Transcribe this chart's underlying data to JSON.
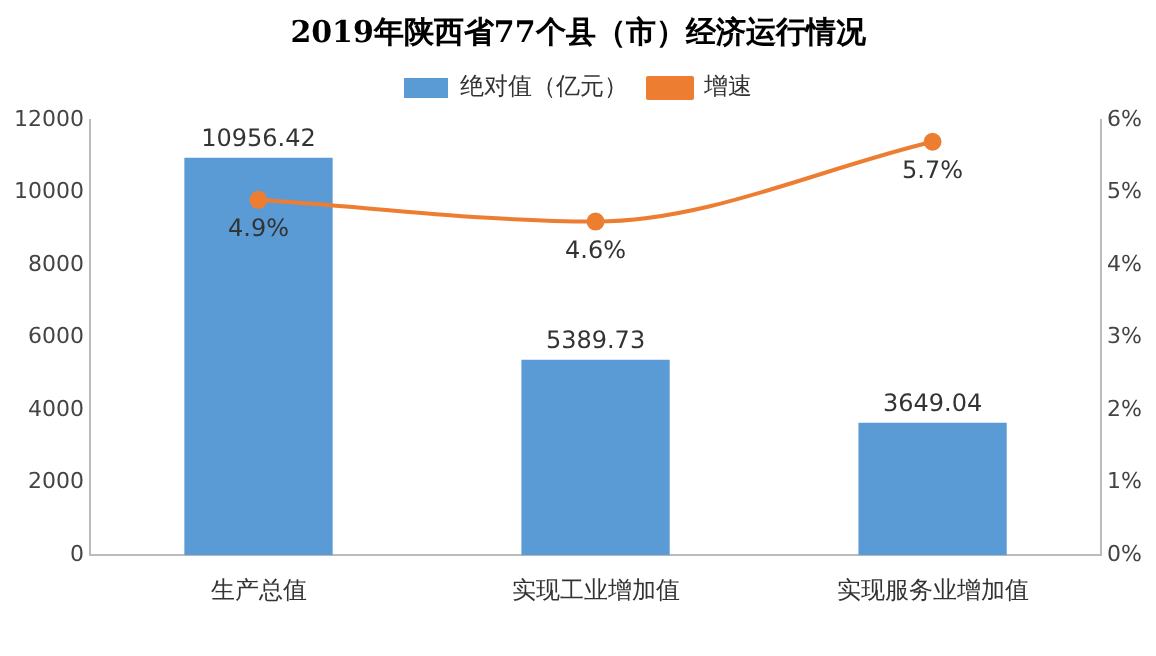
{
  "chart_data": {
    "type": "bar",
    "title": "2019年陕西省77个县（市）经济运行情况",
    "categories": [
      "生产总值",
      "实现工业增加值",
      "实现服务业增加值"
    ],
    "series": [
      {
        "name": "绝对值（亿元）",
        "color": "#5b9bd5",
        "values": [
          10956.42,
          5389.73,
          3649.04
        ],
        "value_labels": [
          "10956.42",
          "5389.73",
          "3649.04"
        ]
      },
      {
        "name": "增速",
        "type": "line",
        "axis": "y2",
        "color": "#ed7d31",
        "values": [
          4.9,
          4.6,
          5.7
        ],
        "value_labels": [
          "4.9%",
          "4.6%",
          "5.7%"
        ],
        "marker": "circle"
      }
    ],
    "ylim": [
      0,
      12000
    ],
    "yticks": [
      0,
      2000,
      4000,
      6000,
      8000,
      10000,
      12000
    ],
    "y2lim": [
      0,
      6
    ],
    "y2ticks": [
      {
        "value": 0,
        "label": "0%"
      },
      {
        "value": 1,
        "label": "1%"
      },
      {
        "value": 2,
        "label": "2%"
      },
      {
        "value": 3,
        "label": "3%"
      },
      {
        "value": 4,
        "label": "4%"
      },
      {
        "value": 5,
        "label": "5%"
      },
      {
        "value": 6,
        "label": "6%"
      }
    ],
    "grid": false,
    "legend": "top"
  }
}
